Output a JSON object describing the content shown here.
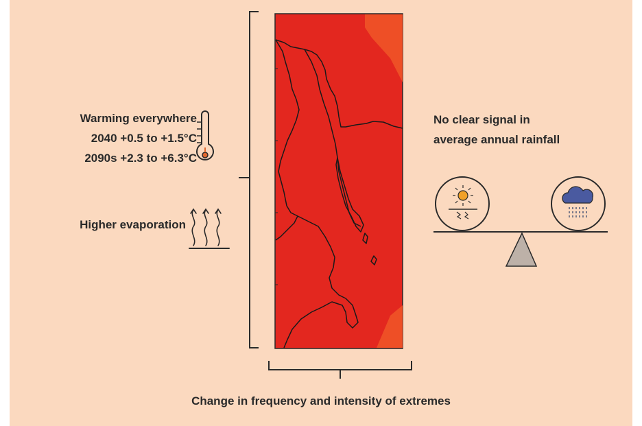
{
  "warming": {
    "title": "Warming everywhere",
    "line_2040": "2040 +0.5 to +1.5°C",
    "line_2090": "2090s +2.3 to +6.3°C",
    "icon": "thermometer-icon"
  },
  "evaporation": {
    "label": "Higher evaporation",
    "icon": "evaporation-arrows-icon"
  },
  "rainfall": {
    "line_1": "No clear signal in",
    "line_2": "average annual rainfall",
    "left_icon": "sun-drought-icon",
    "right_icon": "rain-cloud-icon",
    "balance_icon": "balance-scale-icon"
  },
  "extremes": {
    "label": "Change in frequency and intensity of extremes"
  },
  "colors": {
    "background": "#fbd9bf",
    "map_red": "#e3271f",
    "map_orange": "#ee4f26",
    "ink": "#2a2a2a",
    "fulcrum": "#bdb1a8"
  }
}
